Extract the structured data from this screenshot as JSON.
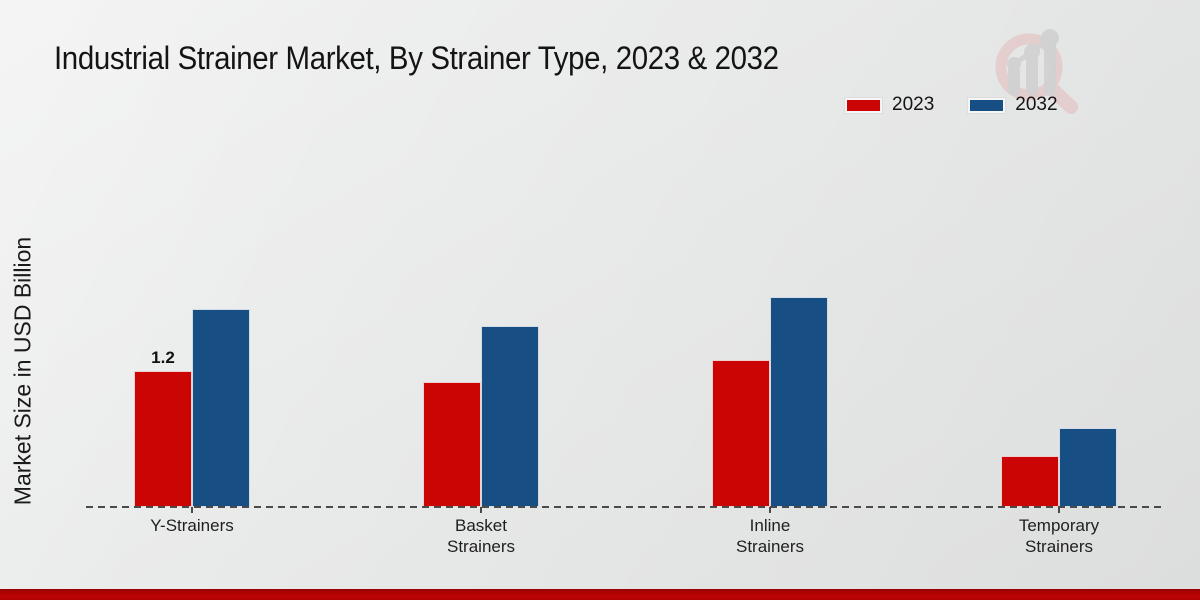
{
  "title": "Industrial Strainer Market, By Strainer Type, 2023 & 2032",
  "chart_data": {
    "type": "bar",
    "title": "Industrial Strainer Market, By Strainer Type, 2023 & 2032",
    "xlabel": "",
    "ylabel": "Market Size in USD Billion",
    "categories": [
      "Y-Strainers",
      "Basket\nStrainers",
      "Inline\nStrainers",
      "Temporary\nStrainers"
    ],
    "series": [
      {
        "name": "2023",
        "color": "#cb0404",
        "values": [
          1.2,
          1.1,
          1.3,
          0.45
        ]
      },
      {
        "name": "2032",
        "color": "#174e84",
        "values": [
          1.75,
          1.6,
          1.85,
          0.7
        ]
      }
    ],
    "annotations": [
      {
        "series_index": 0,
        "category_index": 0,
        "text": "1.2"
      }
    ],
    "legend_position": "top-right",
    "grid": false,
    "baseline_style": "dashed",
    "ylim": [
      0,
      2.2
    ]
  },
  "colors": {
    "accent_red": "#cb0404",
    "accent_blue": "#174e84",
    "footer_bar": "#b30202",
    "background": "#eaebeb",
    "watermark_pink": "#e3c6c6",
    "watermark_gray": "#d2d2d2"
  },
  "icons": {
    "watermark": "magnifier-bar-chart-watermark"
  }
}
